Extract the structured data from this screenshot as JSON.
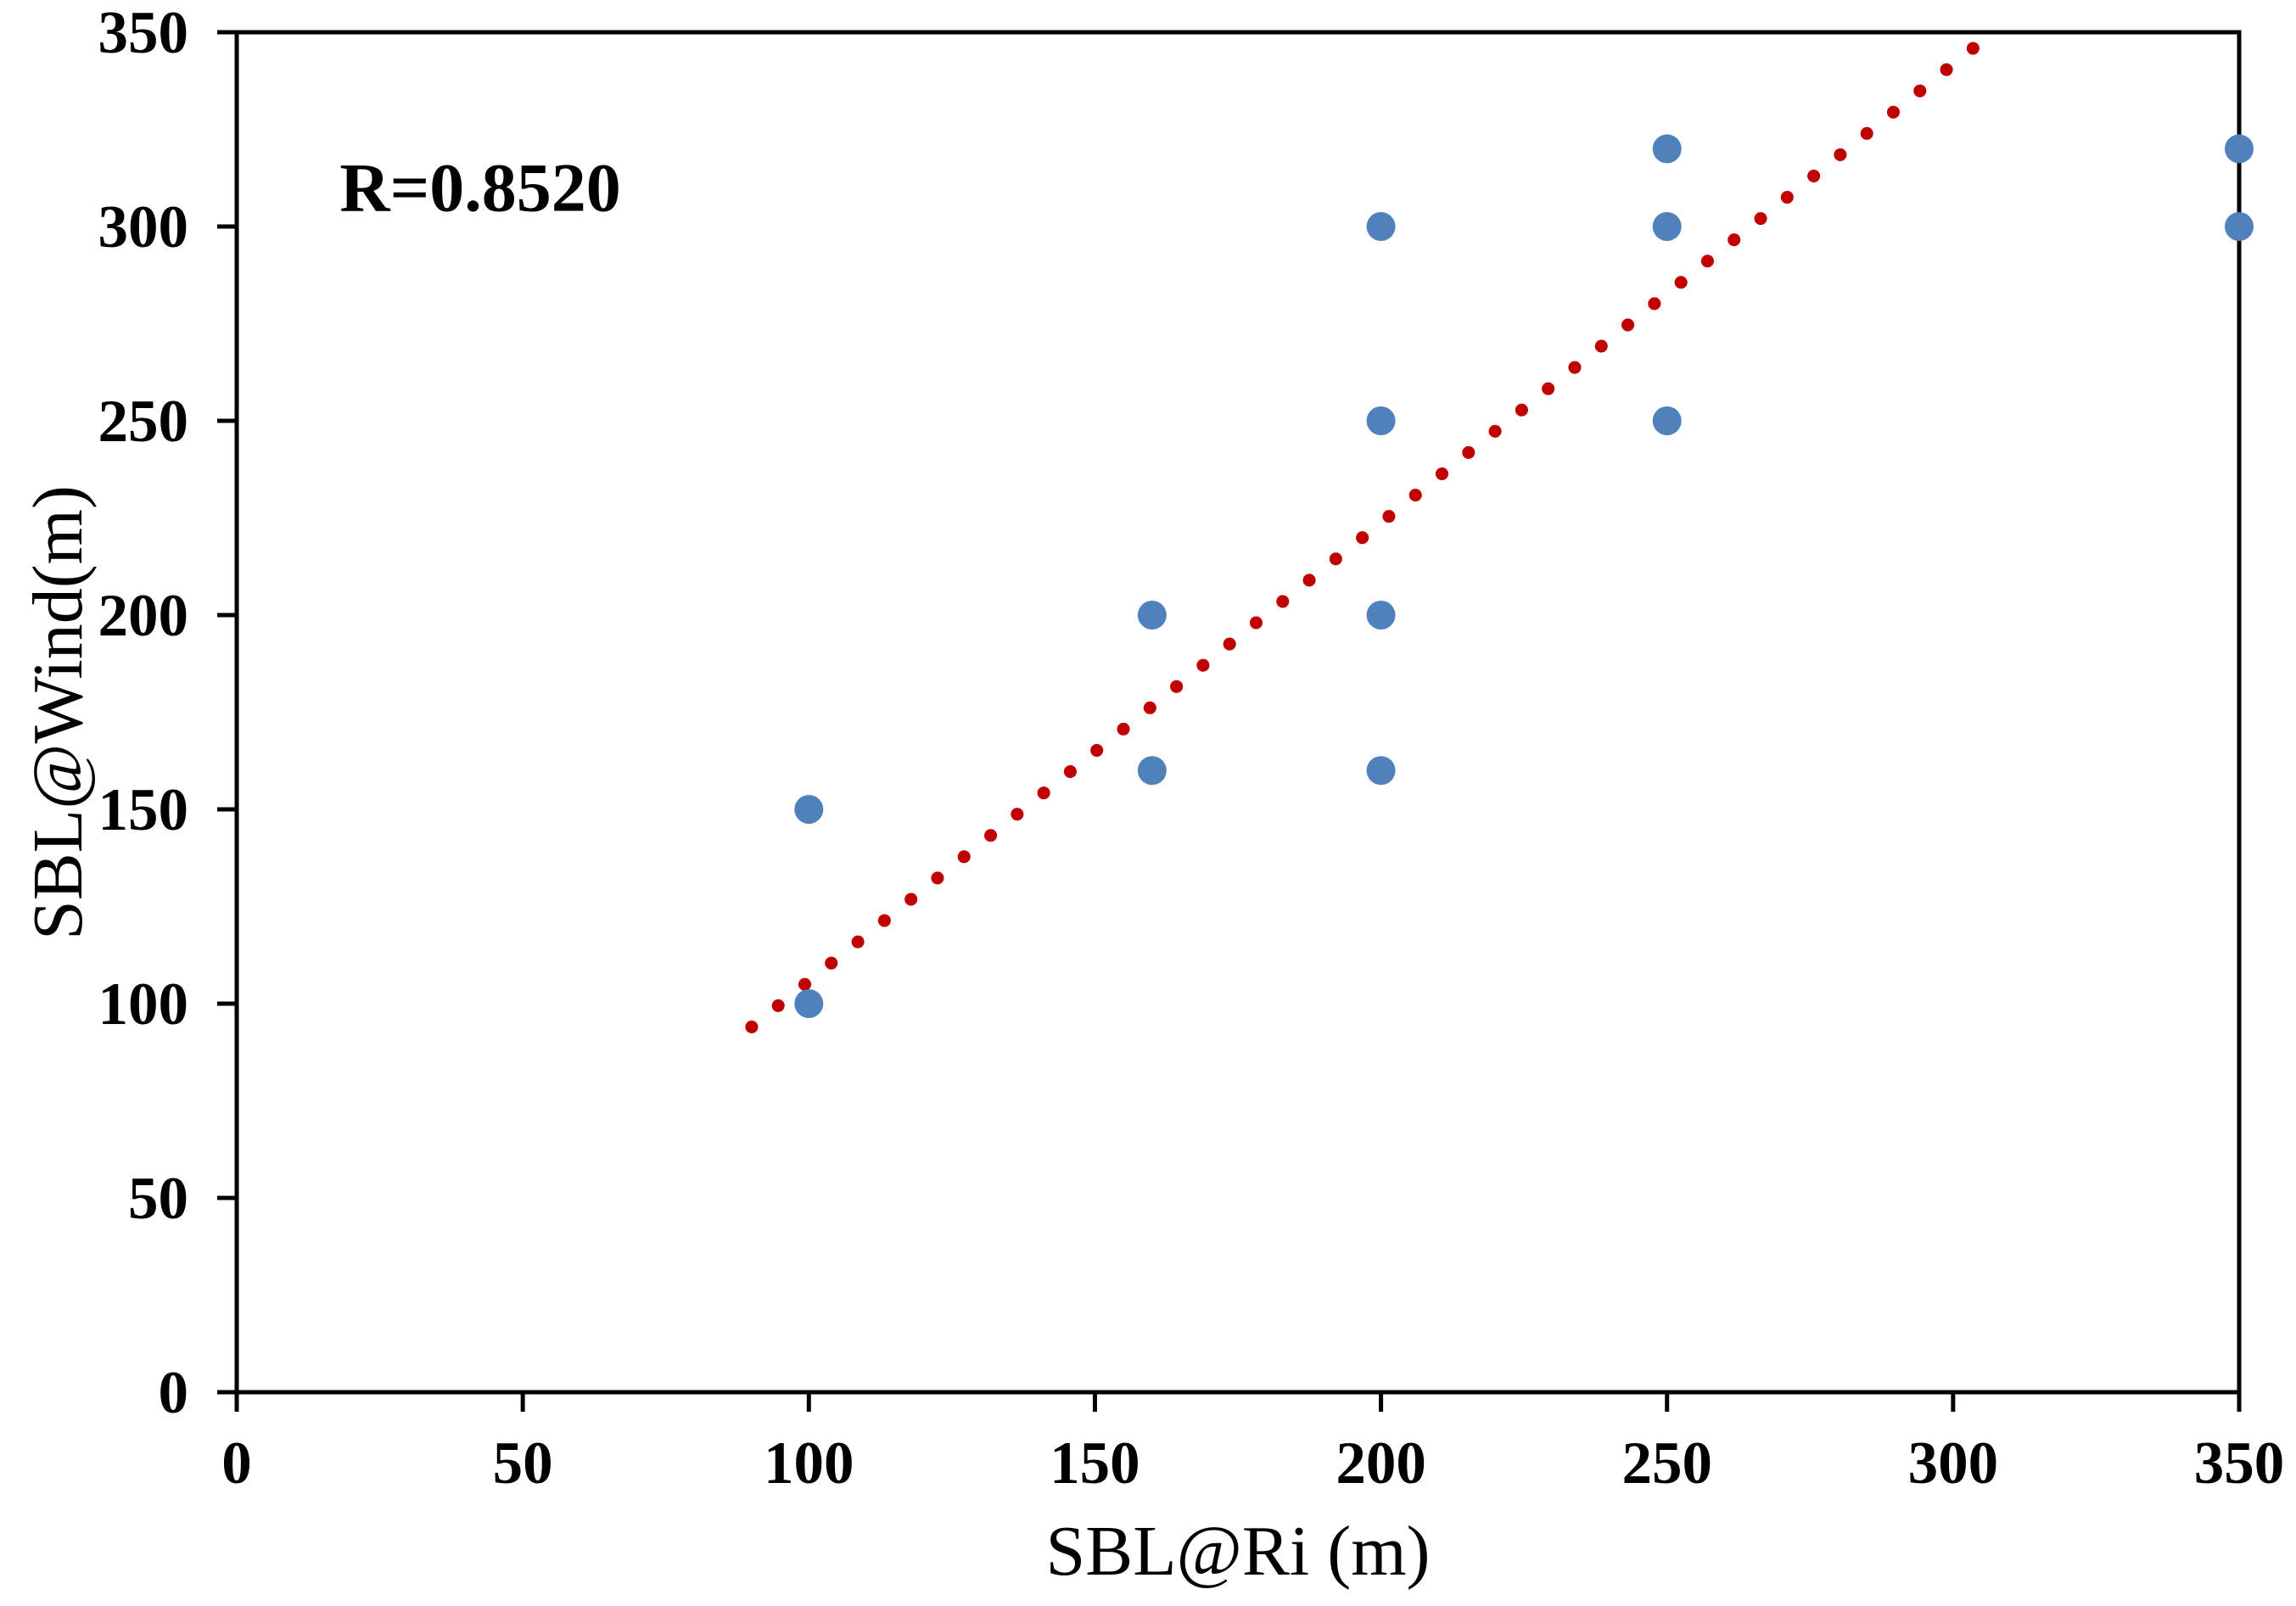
{
  "chart_data": {
    "type": "scatter",
    "title": "",
    "xlabel": "SBL@Ri (m)",
    "ylabel": "SBL@Wind(m)",
    "annotation": {
      "text": "R=0.8520",
      "x": 18,
      "y": 304
    },
    "xlim": [
      0,
      350
    ],
    "ylim": [
      0,
      350
    ],
    "xticks": [
      0,
      50,
      100,
      150,
      200,
      250,
      300,
      350
    ],
    "yticks": [
      0,
      50,
      100,
      150,
      200,
      250,
      300,
      350
    ],
    "grid": false,
    "legend": null,
    "frame": "full-box",
    "marker": {
      "shape": "circle",
      "color": "#4F81BD",
      "radius_px": 17
    },
    "points": [
      {
        "x": 100,
        "y": 150
      },
      {
        "x": 100,
        "y": 100
      },
      {
        "x": 160,
        "y": 200
      },
      {
        "x": 160,
        "y": 160
      },
      {
        "x": 200,
        "y": 300
      },
      {
        "x": 200,
        "y": 250
      },
      {
        "x": 200,
        "y": 200
      },
      {
        "x": 200,
        "y": 160
      },
      {
        "x": 250,
        "y": 320
      },
      {
        "x": 250,
        "y": 300
      },
      {
        "x": 250,
        "y": 250
      },
      {
        "x": 350,
        "y": 320
      },
      {
        "x": 350,
        "y": 300
      }
    ],
    "trendline": {
      "style": "dotted",
      "color": "#C00000",
      "x1": 90,
      "y1": 94,
      "x2": 307,
      "y2": 350
    },
    "axis_color": "#000000"
  }
}
